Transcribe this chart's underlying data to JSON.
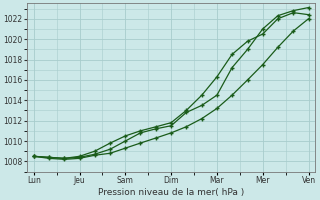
{
  "xlabel": "Pression niveau de la mer( hPa )",
  "bg_color": "#cce8e8",
  "plot_bg_color": "#cce8e8",
  "grid_color": "#a8cccc",
  "line_color": "#1a5c1a",
  "ylim": [
    1007.0,
    1023.5
  ],
  "yticks": [
    1008,
    1010,
    1012,
    1014,
    1016,
    1018,
    1020,
    1022
  ],
  "x_labels": [
    "Lun",
    "Jeu",
    "Sam",
    "Dim",
    "Mar",
    "Mer",
    "Ven"
  ],
  "x_tick_pos": [
    0,
    1,
    2,
    3,
    4,
    5,
    6
  ],
  "xlim": [
    -0.15,
    6.15
  ],
  "series1_x": [
    0,
    0.33,
    0.67,
    1.0,
    1.33,
    1.67,
    2.0,
    2.33,
    2.67,
    3.0,
    3.33,
    3.67,
    4.0,
    4.33,
    4.67,
    5.0,
    5.33,
    5.67,
    6.0
  ],
  "series1_y": [
    1008.5,
    1008.3,
    1008.2,
    1008.3,
    1008.6,
    1008.8,
    1009.3,
    1009.8,
    1010.3,
    1010.8,
    1011.4,
    1012.2,
    1013.2,
    1014.5,
    1016.0,
    1017.5,
    1019.2,
    1020.8,
    1022.0
  ],
  "series2_x": [
    0,
    0.33,
    0.67,
    1.0,
    1.33,
    1.67,
    2.0,
    2.33,
    2.67,
    3.0,
    3.33,
    3.67,
    4.0,
    4.33,
    4.67,
    5.0,
    5.33,
    5.67,
    6.0
  ],
  "series2_y": [
    1008.5,
    1008.4,
    1008.3,
    1008.4,
    1008.7,
    1009.2,
    1010.0,
    1010.8,
    1011.2,
    1011.5,
    1012.8,
    1013.5,
    1014.5,
    1017.2,
    1019.0,
    1021.0,
    1022.3,
    1022.8,
    1023.1
  ],
  "series3_x": [
    0,
    0.33,
    0.67,
    1.0,
    1.33,
    1.67,
    2.0,
    2.33,
    2.67,
    3.0,
    3.33,
    3.67,
    4.0,
    4.33,
    4.67,
    5.0,
    5.33,
    5.67,
    6.0
  ],
  "series3_y": [
    1008.5,
    1008.4,
    1008.3,
    1008.5,
    1009.0,
    1009.8,
    1010.5,
    1011.0,
    1011.4,
    1011.8,
    1013.0,
    1014.5,
    1016.3,
    1018.5,
    1019.8,
    1020.5,
    1022.0,
    1022.6,
    1022.4
  ]
}
